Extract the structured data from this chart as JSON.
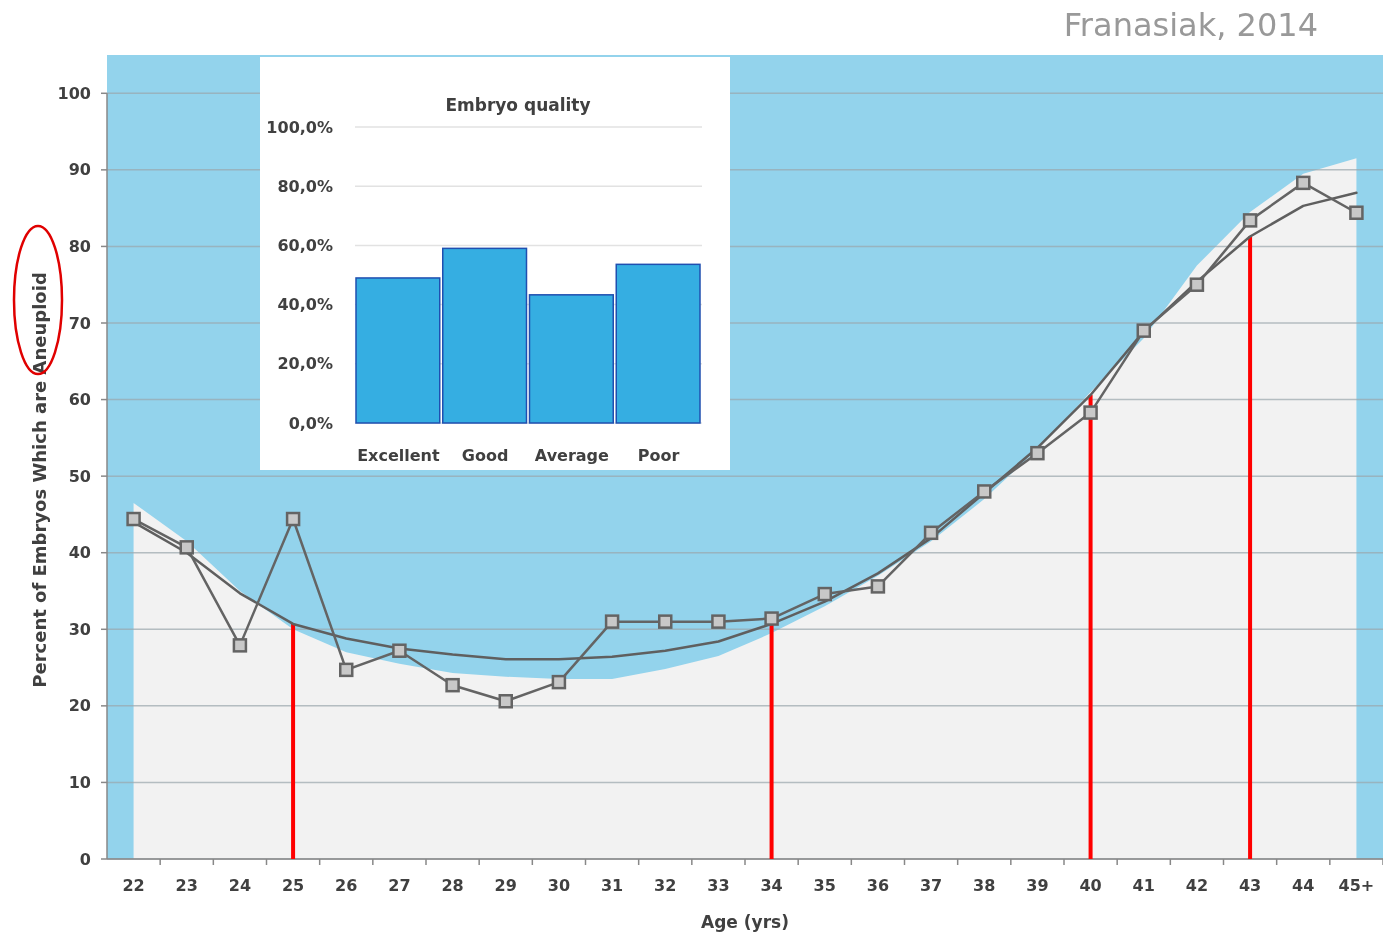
{
  "chart_data": [
    {
      "type": "line",
      "xlabel": "Age (yrs)",
      "ylabel": "Percent of Embryos Which are Aneuploid",
      "annotations": [
        "Franasiak, 2014"
      ],
      "categories": [
        "22",
        "23",
        "24",
        "25",
        "26",
        "27",
        "28",
        "29",
        "30",
        "31",
        "32",
        "33",
        "34",
        "35",
        "36",
        "37",
        "38",
        "39",
        "40",
        "41",
        "42",
        "43",
        "44",
        "45+"
      ],
      "ylim": [
        0,
        105
      ],
      "yticks": [
        0,
        10,
        20,
        30,
        40,
        50,
        60,
        70,
        80,
        90,
        100
      ],
      "grid": "y",
      "marker": "square",
      "line_style": "solid",
      "series": [
        {
          "type": "area",
          "color": "#f2f2f2",
          "marker": "none",
          "values": [
            46.5,
            41.5,
            35,
            30,
            27,
            25.5,
            24.3,
            23.8,
            23.5,
            23.5,
            24.8,
            26.5,
            29.5,
            33,
            37,
            41.5,
            47,
            53.5,
            61,
            68,
            77.5,
            84.5,
            89.5,
            91.5
          ]
        },
        {
          "type": "line",
          "color": "#5f5f5f",
          "marker": "none",
          "values": [
            44,
            40,
            34.7,
            30.7,
            28.8,
            27.5,
            26.7,
            26.1,
            26.1,
            26.4,
            27.2,
            28.4,
            30.7,
            33.6,
            37.3,
            41.9,
            47.8,
            53.7,
            60.6,
            68.9,
            75.4,
            81.3,
            85.3,
            87
          ]
        },
        {
          "type": "line",
          "color": "#646464",
          "values": [
            44.4,
            40.7,
            27.9,
            44.4,
            24.7,
            27.2,
            22.7,
            20.6,
            23.1,
            31,
            31,
            31,
            31.4,
            34.6,
            35.6,
            42.6,
            48,
            53,
            58.3,
            69,
            75,
            83.4,
            88.3,
            84.4
          ]
        }
      ],
      "ref_lines": [
        {
          "axis": "x",
          "value": "25",
          "color": "#ff0000"
        },
        {
          "axis": "x",
          "value": "34",
          "color": "#ff0000"
        },
        {
          "axis": "x",
          "value": "40",
          "color": "#ff0000"
        },
        {
          "axis": "x",
          "value": "43",
          "color": "#ff0000"
        }
      ]
    },
    {
      "type": "bar",
      "title": "Embryo quality",
      "categories": [
        "Excellent",
        "Good",
        "Average",
        "Poor"
      ],
      "values": [
        49,
        59,
        43.3,
        53.6
      ],
      "color": "#35aee2",
      "ylim": [
        0,
        100
      ],
      "yticks": [
        {
          "value": 0,
          "label": "0,0%"
        },
        {
          "value": 20,
          "label": "20,0%"
        },
        {
          "value": 40,
          "label": "40,0%"
        },
        {
          "value": 60,
          "label": "60,0%"
        },
        {
          "value": 80,
          "label": "80,0%"
        },
        {
          "value": 100,
          "label": "100,0%"
        }
      ],
      "grid": "y"
    }
  ]
}
